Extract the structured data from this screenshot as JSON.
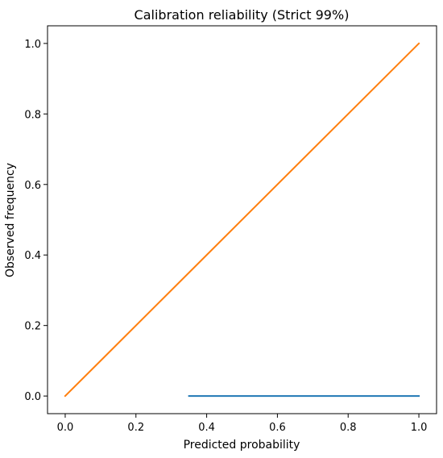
{
  "chart_data": {
    "type": "line",
    "title": "Calibration reliability (Strict 99%)",
    "xlabel": "Predicted probability",
    "ylabel": "Observed frequency",
    "xlim": [
      -0.05,
      1.05
    ],
    "ylim": [
      -0.05,
      1.05
    ],
    "xticks": [
      0.0,
      0.2,
      0.4,
      0.6,
      0.8,
      1.0
    ],
    "yticks": [
      0.0,
      0.2,
      0.4,
      0.6,
      0.8,
      1.0
    ],
    "xtick_labels": [
      "0.0",
      "0.2",
      "0.4",
      "0.6",
      "0.8",
      "1.0"
    ],
    "ytick_labels": [
      "0.0",
      "0.2",
      "0.4",
      "0.6",
      "0.8",
      "1.0"
    ],
    "grid": false,
    "series": [
      {
        "color": "#1f77b4",
        "x": [
          0.35,
          1.0
        ],
        "y": [
          0.0,
          0.0
        ]
      },
      {
        "color": "#ff7f0e",
        "x": [
          0.0,
          1.0
        ],
        "y": [
          0.0,
          1.0
        ]
      }
    ]
  }
}
